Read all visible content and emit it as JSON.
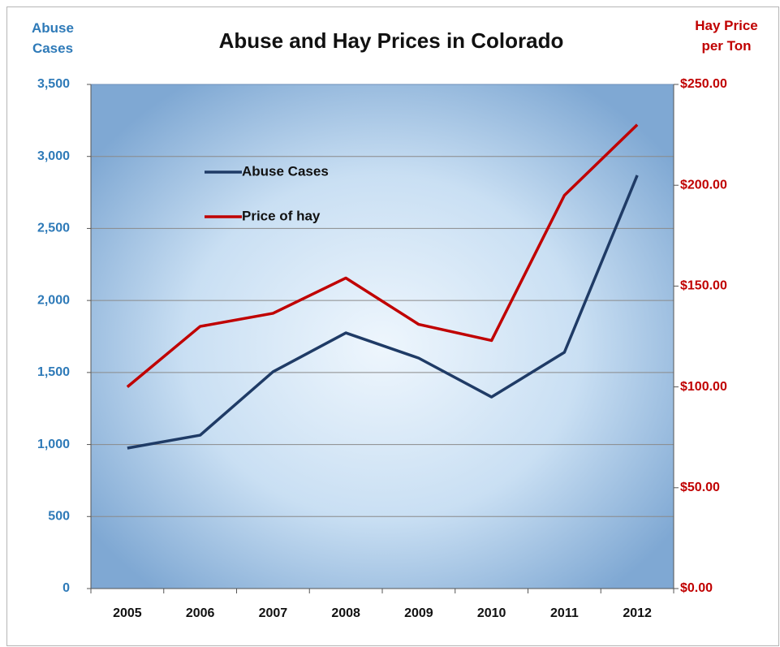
{
  "chart_data": {
    "type": "line",
    "title": "Abuse and Hay Prices in Colorado",
    "y_label": "Abuse Cases",
    "y2_label": "Hay Price per Ton",
    "categories": [
      "2005",
      "2006",
      "2007",
      "2008",
      "2009",
      "2010",
      "2011",
      "2012"
    ],
    "series": [
      {
        "name": "Abuse Cases",
        "color": "#1f3b66",
        "values": [
          975,
          1065,
          1505,
          1775,
          1600,
          1330,
          1640,
          2869
        ]
      },
      {
        "name": "Price of hay",
        "color": "#c00000",
        "axis": "y2",
        "values": [
          100,
          130,
          136.5,
          154,
          131,
          123,
          195,
          230
        ]
      }
    ],
    "ylim": [
      0,
      3500
    ],
    "yticks": [
      0,
      500,
      {
        "value": 1000,
        "label": "1,000"
      },
      {
        "value": 1500,
        "label": "1,500"
      },
      {
        "value": 2000,
        "label": "2,000"
      },
      {
        "value": 2500,
        "label": "2,500"
      },
      {
        "value": 3000,
        "label": "3,000"
      },
      {
        "value": 3500,
        "label": "3,500"
      }
    ],
    "y2lim": [
      0,
      250
    ],
    "y2ticks": [
      {
        "value": 0,
        "label": "$0.00"
      },
      {
        "value": 50,
        "label": "$50.00"
      },
      {
        "value": 100,
        "label": "$100.00"
      },
      {
        "value": 150,
        "label": "$150.00"
      },
      {
        "value": 200,
        "label": "$200.00"
      },
      {
        "value": 250,
        "label": "$250.00"
      }
    ],
    "grid": true,
    "legend": "upper left"
  }
}
